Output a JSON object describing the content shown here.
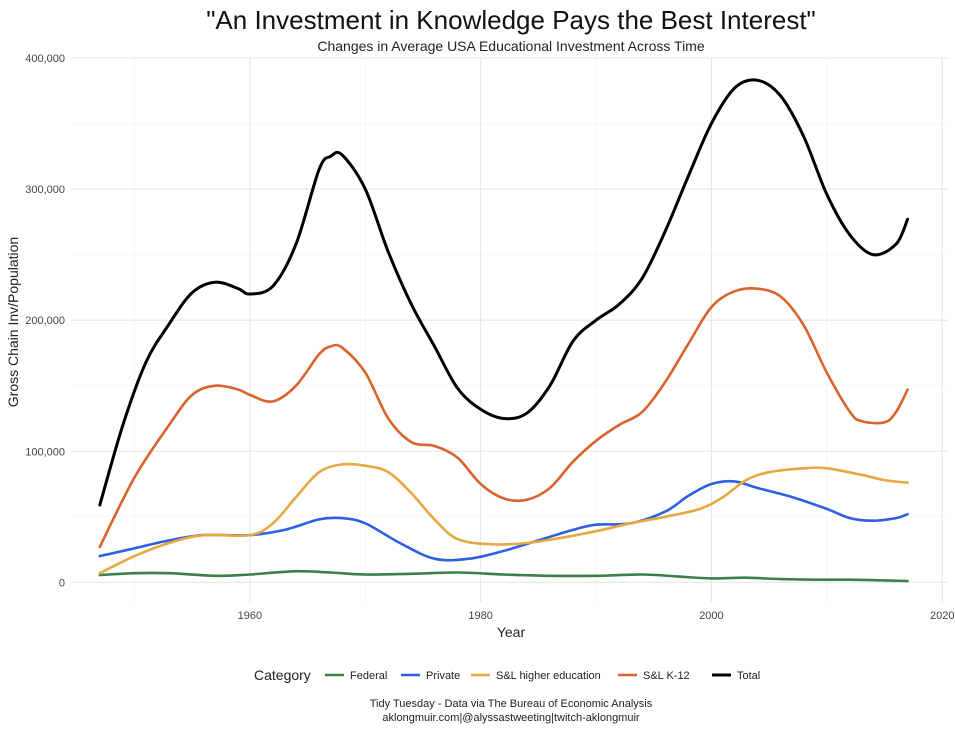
{
  "chart_data": {
    "type": "line",
    "title": "\"An Investment in Knowledge Pays the Best Interest\"",
    "subtitle": "Changes in Average USA Educational Investment Across Time",
    "xlabel": "Year",
    "ylabel": "Gross Chain Inv/Population",
    "xlim": [
      1944.5,
      2020.5
    ],
    "ylim": [
      -15000,
      400000
    ],
    "x_ticks": [
      1960,
      1980,
      2000,
      2020
    ],
    "x_tick_labels": [
      "1960",
      "1980",
      "2000",
      "2020"
    ],
    "y_ticks": [
      0,
      100000,
      200000,
      300000,
      400000
    ],
    "y_tick_labels": [
      "0",
      "100,000",
      "200,000",
      "300,000",
      "400,000"
    ],
    "grid": true,
    "legend": {
      "title": "Category",
      "position": "bottom"
    },
    "caption": [
      "Tidy Tuesday - Data via The Bureau of Economic Analysis",
      "aklongmuir.com|@alyssastweeting|twitch-aklongmuir"
    ],
    "series": [
      {
        "name": "Federal",
        "color": "#3d7e4a",
        "points": [
          [
            1947,
            5500
          ],
          [
            1950,
            7000
          ],
          [
            1953,
            7000
          ],
          [
            1957,
            5000
          ],
          [
            1960,
            6000
          ],
          [
            1964,
            8500
          ],
          [
            1967,
            7500
          ],
          [
            1970,
            6000
          ],
          [
            1974,
            6500
          ],
          [
            1978,
            7500
          ],
          [
            1982,
            6000
          ],
          [
            1986,
            5000
          ],
          [
            1990,
            5000
          ],
          [
            1994,
            6000
          ],
          [
            1997,
            4500
          ],
          [
            2000,
            3000
          ],
          [
            2003,
            3500
          ],
          [
            2006,
            2500
          ],
          [
            2009,
            2000
          ],
          [
            2012,
            2000
          ],
          [
            2015,
            1500
          ],
          [
            2017,
            1000
          ]
        ]
      },
      {
        "name": "Private",
        "color": "#2f5fe3",
        "points": [
          [
            1947,
            20000
          ],
          [
            1950,
            26000
          ],
          [
            1953,
            32000
          ],
          [
            1956,
            36000
          ],
          [
            1960,
            36000
          ],
          [
            1963,
            40000
          ],
          [
            1966,
            48000
          ],
          [
            1968,
            49000
          ],
          [
            1970,
            45000
          ],
          [
            1973,
            30000
          ],
          [
            1976,
            18000
          ],
          [
            1979,
            18000
          ],
          [
            1982,
            24000
          ],
          [
            1985,
            32000
          ],
          [
            1988,
            40000
          ],
          [
            1990,
            44000
          ],
          [
            1993,
            45000
          ],
          [
            1996,
            54000
          ],
          [
            1998,
            66000
          ],
          [
            2000,
            75000
          ],
          [
            2002,
            77000
          ],
          [
            2004,
            72000
          ],
          [
            2007,
            65000
          ],
          [
            2010,
            56000
          ],
          [
            2012,
            49000
          ],
          [
            2014,
            47000
          ],
          [
            2016,
            49000
          ],
          [
            2017,
            52000
          ]
        ]
      },
      {
        "name": "S&L higher education",
        "color": "#e8a840",
        "points": [
          [
            1947,
            7000
          ],
          [
            1950,
            20000
          ],
          [
            1953,
            30000
          ],
          [
            1956,
            36000
          ],
          [
            1960,
            36000
          ],
          [
            1962,
            45000
          ],
          [
            1964,
            65000
          ],
          [
            1966,
            84000
          ],
          [
            1968,
            90000
          ],
          [
            1970,
            89000
          ],
          [
            1972,
            84000
          ],
          [
            1974,
            68000
          ],
          [
            1976,
            48000
          ],
          [
            1978,
            33000
          ],
          [
            1981,
            29000
          ],
          [
            1984,
            30000
          ],
          [
            1987,
            34000
          ],
          [
            1990,
            39000
          ],
          [
            1993,
            45000
          ],
          [
            1996,
            50000
          ],
          [
            1999,
            56000
          ],
          [
            2001,
            65000
          ],
          [
            2003,
            78000
          ],
          [
            2005,
            84000
          ],
          [
            2008,
            87000
          ],
          [
            2010,
            87000
          ],
          [
            2013,
            82000
          ],
          [
            2015,
            78000
          ],
          [
            2017,
            76000
          ]
        ]
      },
      {
        "name": "S&L K-12",
        "color": "#d8632d",
        "points": [
          [
            1947,
            27000
          ],
          [
            1950,
            80000
          ],
          [
            1953,
            120000
          ],
          [
            1955,
            143000
          ],
          [
            1957,
            150000
          ],
          [
            1959,
            147000
          ],
          [
            1960,
            143000
          ],
          [
            1962,
            138000
          ],
          [
            1964,
            150000
          ],
          [
            1966,
            174000
          ],
          [
            1967,
            180000
          ],
          [
            1968,
            179000
          ],
          [
            1970,
            160000
          ],
          [
            1972,
            125000
          ],
          [
            1974,
            107000
          ],
          [
            1976,
            104000
          ],
          [
            1978,
            95000
          ],
          [
            1980,
            75000
          ],
          [
            1982,
            64000
          ],
          [
            1984,
            63000
          ],
          [
            1986,
            72000
          ],
          [
            1988,
            92000
          ],
          [
            1990,
            108000
          ],
          [
            1992,
            120000
          ],
          [
            1994,
            130000
          ],
          [
            1996,
            153000
          ],
          [
            1998,
            182000
          ],
          [
            2000,
            210000
          ],
          [
            2002,
            222000
          ],
          [
            2004,
            224000
          ],
          [
            2006,
            218000
          ],
          [
            2008,
            196000
          ],
          [
            2010,
            160000
          ],
          [
            2012,
            130000
          ],
          [
            2013,
            123000
          ],
          [
            2015,
            122000
          ],
          [
            2016,
            130000
          ],
          [
            2017,
            147000
          ]
        ]
      },
      {
        "name": "Total",
        "color": "#000000",
        "points": [
          [
            1947,
            59000
          ],
          [
            1949,
            120000
          ],
          [
            1951,
            168000
          ],
          [
            1953,
            197000
          ],
          [
            1955,
            221000
          ],
          [
            1957,
            229000
          ],
          [
            1959,
            224000
          ],
          [
            1960,
            220000
          ],
          [
            1962,
            226000
          ],
          [
            1964,
            258000
          ],
          [
            1966,
            315000
          ],
          [
            1967,
            325000
          ],
          [
            1968,
            326000
          ],
          [
            1970,
            300000
          ],
          [
            1972,
            252000
          ],
          [
            1974,
            212000
          ],
          [
            1976,
            180000
          ],
          [
            1978,
            148000
          ],
          [
            1980,
            132000
          ],
          [
            1982,
            125000
          ],
          [
            1984,
            129000
          ],
          [
            1986,
            150000
          ],
          [
            1988,
            184000
          ],
          [
            1990,
            200000
          ],
          [
            1992,
            212000
          ],
          [
            1994,
            232000
          ],
          [
            1996,
            268000
          ],
          [
            1998,
            310000
          ],
          [
            2000,
            350000
          ],
          [
            2002,
            377000
          ],
          [
            2004,
            383000
          ],
          [
            2006,
            371000
          ],
          [
            2008,
            340000
          ],
          [
            2010,
            296000
          ],
          [
            2012,
            265000
          ],
          [
            2014,
            250000
          ],
          [
            2016,
            258000
          ],
          [
            2017,
            277000
          ]
        ]
      }
    ]
  }
}
